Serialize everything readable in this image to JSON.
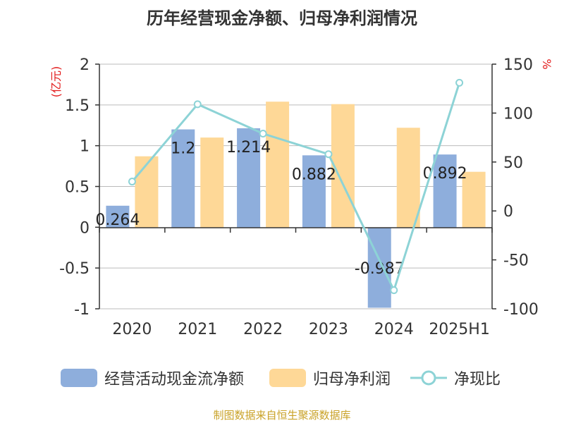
{
  "title": "历年经营现金净额、归母净利润情况",
  "footer": "制图数据来自恒生聚源数据库",
  "colors": {
    "bar1": "#8eaedc",
    "bar2": "#fed897",
    "line": "#8dd3d6",
    "unit": "#e21a1a",
    "axis": "#333333",
    "grid": "#bbbbbb",
    "footer": "#c9a227"
  },
  "chart_data": {
    "type": "bar",
    "categories": [
      "2020",
      "2021",
      "2022",
      "2023",
      "2024",
      "2025H1"
    ],
    "y_left": {
      "unit": "(亿元)",
      "ylim": [
        -1,
        2
      ],
      "ticks": [
        "2",
        "1.5",
        "1",
        "0.5",
        "0",
        "-0.5",
        "-1"
      ],
      "tick_values": [
        2,
        1.5,
        1,
        0.5,
        0,
        -0.5,
        -1
      ]
    },
    "y_right": {
      "unit": "%",
      "ylim": [
        -100,
        150
      ],
      "ticks": [
        "150",
        "100",
        "50",
        "0",
        "-50",
        "-100"
      ],
      "tick_values": [
        150,
        100,
        50,
        0,
        -50,
        -100
      ]
    },
    "grid": true,
    "legend_position": "bottom",
    "series": [
      {
        "name": "经营活动现金流净额",
        "type": "bar",
        "axis": "left",
        "values": [
          0.264,
          1.2,
          1.214,
          0.882,
          -0.987,
          0.892
        ],
        "labels": [
          "0.264",
          "1.2",
          "1.214",
          "0.882",
          "-0.987",
          "0.892"
        ]
      },
      {
        "name": "归母净利润",
        "type": "bar",
        "axis": "left",
        "values": [
          0.87,
          1.1,
          1.54,
          1.51,
          1.22,
          0.68
        ]
      },
      {
        "name": "净现比",
        "type": "line",
        "axis": "right",
        "values": [
          30,
          109,
          79,
          58,
          -81,
          131
        ]
      }
    ]
  },
  "legend": [
    {
      "label": "经营活动现金流净额"
    },
    {
      "label": "归母净利润"
    },
    {
      "label": "净现比"
    }
  ]
}
